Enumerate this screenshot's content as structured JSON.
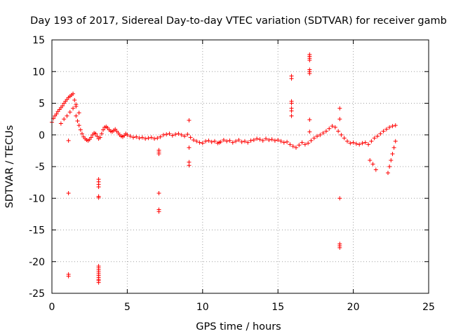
{
  "chart_data": {
    "type": "scatter",
    "title": "Day 193 of 2017, Sidereal Day-to-day VTEC variation (SDTVAR) for receiver gamb",
    "xlabel": "GPS time / hours",
    "ylabel": "SDTVAR / TECUs",
    "xlim": [
      0,
      25
    ],
    "ylim": [
      -25,
      15
    ],
    "xticks": [
      0,
      5,
      10,
      15,
      20,
      25
    ],
    "yticks": [
      -25,
      -20,
      -15,
      -10,
      -5,
      0,
      5,
      10,
      15
    ],
    "grid": true,
    "marker": "plus",
    "color": "#ff0000",
    "series": [
      {
        "name": "SDTVAR",
        "x": [
          0.0,
          0.1,
          0.2,
          0.3,
          0.4,
          0.5,
          0.6,
          0.7,
          0.8,
          0.9,
          1.0,
          1.1,
          1.2,
          1.3,
          1.4,
          1.5,
          1.6,
          0.6,
          0.8,
          1.0,
          1.2,
          1.4,
          1.6,
          1.8,
          1.6,
          1.7,
          1.8,
          1.9,
          2.0,
          2.1,
          2.2,
          2.3,
          2.4,
          2.5,
          2.6,
          2.7,
          2.8,
          2.9,
          3.0,
          3.1,
          3.2,
          3.3,
          3.4,
          3.5,
          3.6,
          3.7,
          3.8,
          3.9,
          4.0,
          4.1,
          4.2,
          4.3,
          4.4,
          4.5,
          4.6,
          4.7,
          4.8,
          4.9,
          5.0,
          5.2,
          5.4,
          5.6,
          5.8,
          6.0,
          6.2,
          6.4,
          6.6,
          6.8,
          7.0,
          7.2,
          7.4,
          7.6,
          7.8,
          8.0,
          8.2,
          8.4,
          8.6,
          8.8,
          9.0,
          9.2,
          9.4,
          9.6,
          9.8,
          10.0,
          10.2,
          10.4,
          10.6,
          10.8,
          11.0,
          11.2,
          11.4,
          11.6,
          11.8,
          12.0,
          12.2,
          12.4,
          12.6,
          12.8,
          13.0,
          13.2,
          13.4,
          13.6,
          13.8,
          14.0,
          14.2,
          14.4,
          14.6,
          14.8,
          15.0,
          15.2,
          15.4,
          15.6,
          15.8,
          16.0,
          16.2,
          16.4,
          16.6,
          16.8,
          17.0,
          17.2,
          17.4,
          17.6,
          17.8,
          18.0,
          18.2,
          18.4,
          18.6,
          18.8,
          19.0,
          19.2,
          19.4,
          19.6,
          19.8,
          20.0,
          20.2,
          20.4,
          20.6,
          20.8,
          21.0,
          21.2,
          21.4,
          21.6,
          21.8,
          22.0,
          22.2,
          22.4,
          22.6,
          22.8,
          22.3,
          22.4,
          22.5,
          22.6,
          22.7,
          22.8,
          1.1,
          1.1,
          1.1,
          1.1,
          3.1,
          3.1,
          3.1,
          3.1,
          3.1,
          3.1,
          3.1,
          3.1,
          3.1,
          3.1,
          3.1,
          3.1,
          3.1,
          3.1,
          3.1,
          3.1,
          7.1,
          7.1,
          7.1,
          7.1,
          7.1,
          7.1,
          9.1,
          9.1,
          9.1,
          9.1,
          15.9,
          15.9,
          15.9,
          15.9,
          15.9,
          15.9,
          15.9,
          17.1,
          17.1,
          17.1,
          17.1,
          17.1,
          17.1,
          17.1,
          17.1,
          17.1,
          19.1,
          19.1,
          19.1,
          19.1,
          19.1,
          19.1,
          11.1,
          21.1,
          21.3,
          21.5
        ],
        "y": [
          2.0,
          2.6,
          3.0,
          3.3,
          3.7,
          4.0,
          4.3,
          4.6,
          5.0,
          5.3,
          5.6,
          5.9,
          6.1,
          6.3,
          6.5,
          5.5,
          4.5,
          1.8,
          2.5,
          3.0,
          3.6,
          4.2,
          4.8,
          3.5,
          3.0,
          2.2,
          1.5,
          0.8,
          0.2,
          -0.3,
          -0.6,
          -0.8,
          -0.9,
          -0.7,
          -0.4,
          0.0,
          0.3,
          0.2,
          -0.2,
          -0.6,
          -0.4,
          0.2,
          0.8,
          1.2,
          1.3,
          1.1,
          0.8,
          0.6,
          0.5,
          0.7,
          0.9,
          0.6,
          0.3,
          0.0,
          -0.2,
          -0.3,
          -0.1,
          0.2,
          0.0,
          -0.2,
          -0.4,
          -0.3,
          -0.5,
          -0.4,
          -0.6,
          -0.5,
          -0.4,
          -0.6,
          -0.5,
          -0.3,
          0.0,
          0.1,
          0.2,
          -0.1,
          0.1,
          0.2,
          0.0,
          -0.2,
          0.1,
          -0.4,
          -0.8,
          -1.0,
          -1.2,
          -1.3,
          -1.0,
          -0.9,
          -1.1,
          -1.0,
          -1.3,
          -1.1,
          -0.8,
          -1.0,
          -0.9,
          -1.2,
          -1.0,
          -0.8,
          -1.1,
          -1.0,
          -1.2,
          -0.9,
          -0.8,
          -0.6,
          -0.7,
          -0.9,
          -0.6,
          -0.8,
          -0.7,
          -0.9,
          -0.8,
          -1.0,
          -1.2,
          -1.1,
          -1.5,
          -1.8,
          -2.0,
          -1.6,
          -1.2,
          -1.5,
          -1.3,
          -0.9,
          -0.5,
          -0.2,
          0.0,
          0.3,
          0.6,
          1.0,
          1.4,
          1.2,
          0.6,
          0.0,
          -0.5,
          -1.0,
          -1.3,
          -1.2,
          -1.4,
          -1.5,
          -1.3,
          -1.2,
          -1.5,
          -1.0,
          -0.5,
          -0.2,
          0.2,
          0.6,
          0.9,
          1.2,
          1.4,
          1.5,
          -6.0,
          -5.0,
          -4.0,
          -3.0,
          -2.0,
          -1.0,
          -0.9,
          -9.2,
          -22.0,
          -22.3,
          -7.0,
          -7.4,
          -7.8,
          -8.2,
          -9.7,
          -9.9,
          -20.7,
          -21.0,
          -21.3,
          -21.6,
          -21.9,
          -22.2,
          -22.5,
          -22.8,
          -23.0,
          -23.3,
          -2.4,
          -2.7,
          -3.0,
          -9.2,
          -11.8,
          -12.1,
          2.3,
          -2.0,
          -4.3,
          -4.8,
          9.3,
          8.9,
          5.3,
          5.0,
          4.2,
          3.8,
          3.0,
          12.7,
          12.4,
          12.1,
          11.8,
          10.3,
          10.0,
          9.7,
          2.4,
          0.5,
          4.2,
          2.5,
          -10.0,
          -17.2,
          -17.5,
          -17.8,
          -1.2,
          -4.0,
          -4.6,
          -5.5
        ]
      }
    ]
  }
}
